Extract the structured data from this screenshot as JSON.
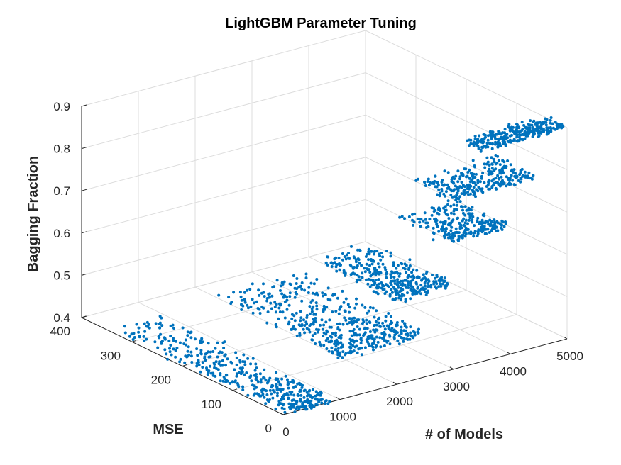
{
  "chart_data": {
    "type": "scatter3d",
    "title": "LightGBM Parameter Tuning",
    "xlabel": "# of Models",
    "ylabel": "MSE",
    "zlabel": "Bagging Fraction",
    "xlim": [
      0,
      5000
    ],
    "ylim": [
      0,
      400
    ],
    "zlim": [
      0.4,
      0.9
    ],
    "x_ticks": [
      "0",
      "1000",
      "2000",
      "3000",
      "4000",
      "5000"
    ],
    "y_ticks": [
      "0",
      "100",
      "200",
      "300",
      "400"
    ],
    "z_ticks": [
      "0.4",
      "0.5",
      "0.6",
      "0.7",
      "0.8",
      "0.9"
    ],
    "grid": true,
    "marker_color": "#0072bd",
    "clusters": [
      {
        "bagging_fraction": 0.4,
        "models_range": [
          100,
          900
        ],
        "mse_range": [
          5,
          345
        ],
        "n_points": 420
      },
      {
        "bagging_fraction": 0.5,
        "models_range": [
          1000,
          2500
        ],
        "mse_range": [
          5,
          250
        ],
        "n_points": 480
      },
      {
        "bagging_fraction": 0.6,
        "models_range": [
          2000,
          3000
        ],
        "mse_range": [
          5,
          160
        ],
        "n_points": 340
      },
      {
        "bagging_fraction": 0.7,
        "models_range": [
          3000,
          4000
        ],
        "mse_range": [
          5,
          110
        ],
        "n_points": 260
      },
      {
        "bagging_fraction": 0.8,
        "models_range": [
          3000,
          4500
        ],
        "mse_range": [
          5,
          80
        ],
        "n_points": 280
      },
      {
        "bagging_fraction": 0.9,
        "models_range": [
          3500,
          5000
        ],
        "mse_range": [
          5,
          40
        ],
        "n_points": 300
      }
    ]
  }
}
